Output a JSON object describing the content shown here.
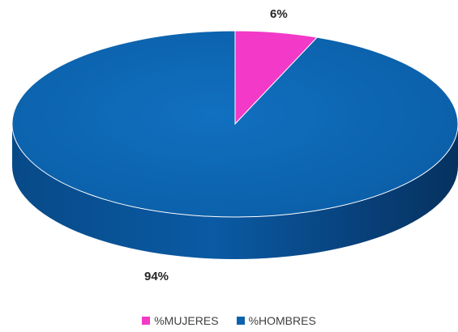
{
  "chart_data": {
    "type": "pie",
    "title": "",
    "categories": [
      "%MUJERES",
      "%HOMBRES"
    ],
    "values": [
      6,
      94
    ],
    "data_labels": [
      "6%",
      "94%"
    ],
    "colors": [
      "#f239c8",
      "#0d62ae"
    ],
    "legend_position": "bottom",
    "style": "3d"
  },
  "labels": {
    "mujeres": "6%",
    "hombres": "94%"
  },
  "legend": {
    "mujeres": "%MUJERES",
    "hombres": "%HOMBRES"
  }
}
